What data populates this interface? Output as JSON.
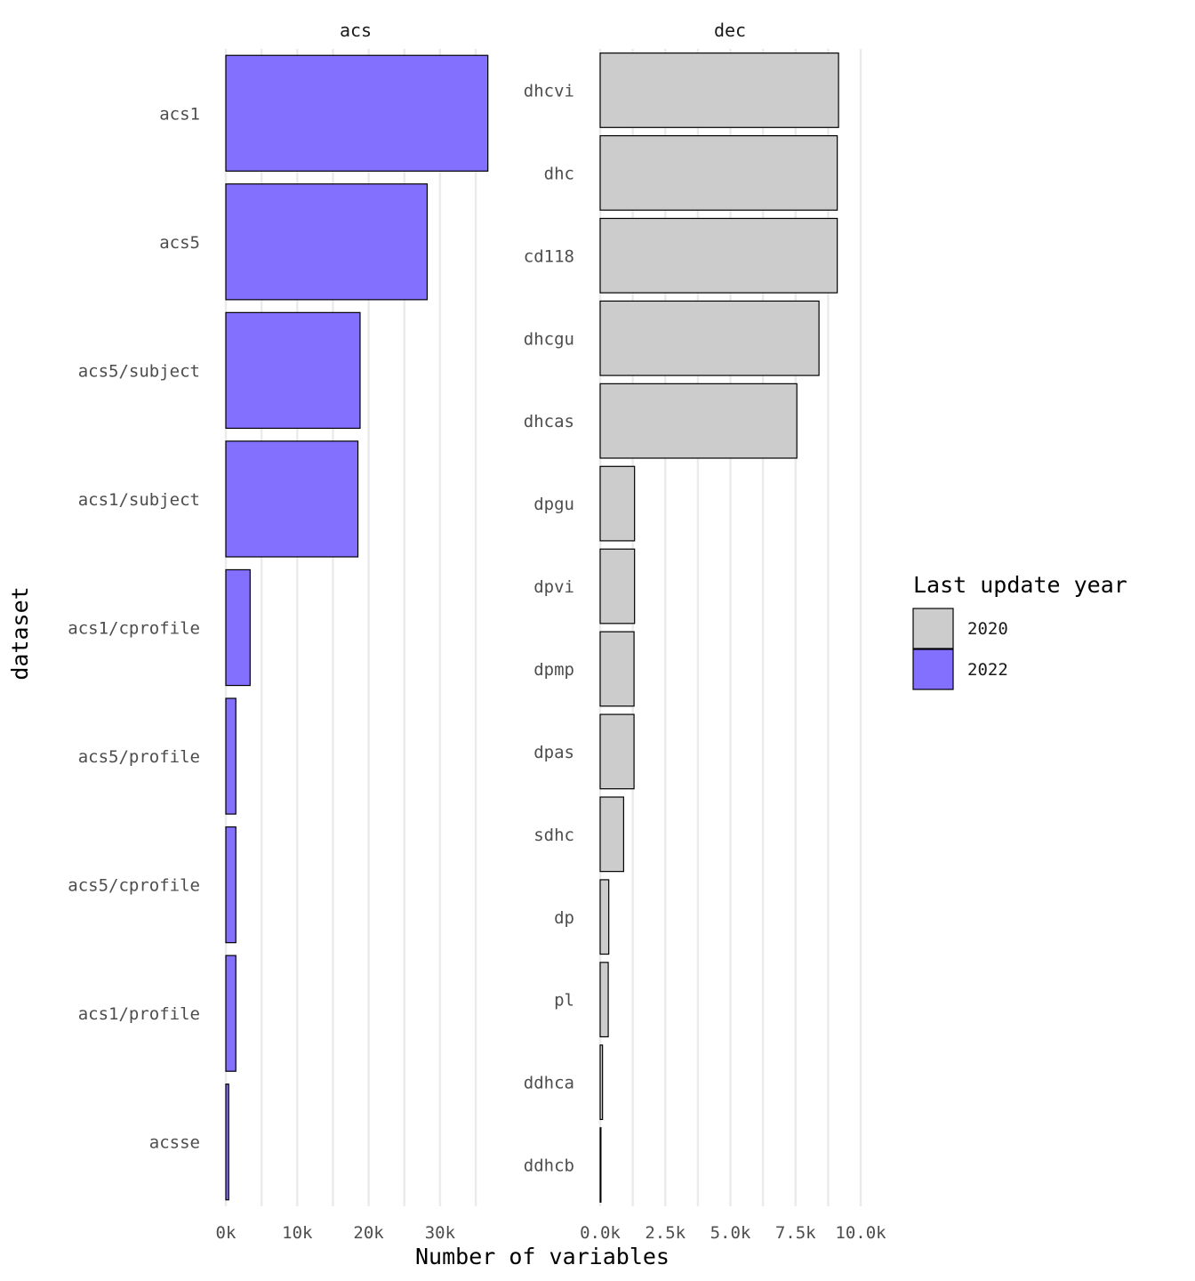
{
  "chart_data": {
    "type": "bar",
    "orientation": "horizontal",
    "xlabel": "Number of variables",
    "ylabel": "dataset",
    "legend": {
      "title": "Last update year",
      "placement": "right",
      "entries": [
        {
          "label": "2020",
          "color": "#cccccc"
        },
        {
          "label": "2022",
          "color": "#8470ff"
        }
      ]
    },
    "grid": true,
    "facets": [
      {
        "name": "acs",
        "xlim": [
          0,
          37000
        ],
        "xticks": [
          0,
          10000,
          20000,
          30000
        ],
        "xtick_labels": [
          "0k",
          "10k",
          "20k",
          "30k"
        ],
        "categories": [
          "acs1",
          "acs5",
          "acs5/subject",
          "acs1/subject",
          "acs1/cprofile",
          "acs5/profile",
          "acs5/cprofile",
          "acs1/profile",
          "acsse"
        ],
        "values": [
          36700,
          28200,
          18800,
          18500,
          3400,
          1400,
          1400,
          1400,
          400
        ],
        "years": [
          "2022",
          "2022",
          "2022",
          "2022",
          "2022",
          "2022",
          "2022",
          "2022",
          "2022"
        ]
      },
      {
        "name": "dec",
        "xlim": [
          0,
          10700
        ],
        "xticks": [
          0,
          2500,
          5000,
          7500,
          10000
        ],
        "xtick_labels": [
          "0.0k",
          "2.5k",
          "5.0k",
          "7.5k",
          "10.0k"
        ],
        "categories": [
          "dhcvi",
          "dhc",
          "cd118",
          "dhcgu",
          "dhcas",
          "dpgu",
          "dpvi",
          "dpmp",
          "dpas",
          "sdhc",
          "dp",
          "pl",
          "ddhca",
          "ddhcb"
        ],
        "values": [
          9150,
          9100,
          9100,
          8400,
          7550,
          1320,
          1320,
          1300,
          1300,
          900,
          330,
          310,
          90,
          30
        ],
        "years": [
          "2020",
          "2020",
          "2020",
          "2020",
          "2020",
          "2020",
          "2020",
          "2020",
          "2020",
          "2020",
          "2020",
          "2020",
          "2020",
          "2020"
        ]
      }
    ]
  }
}
